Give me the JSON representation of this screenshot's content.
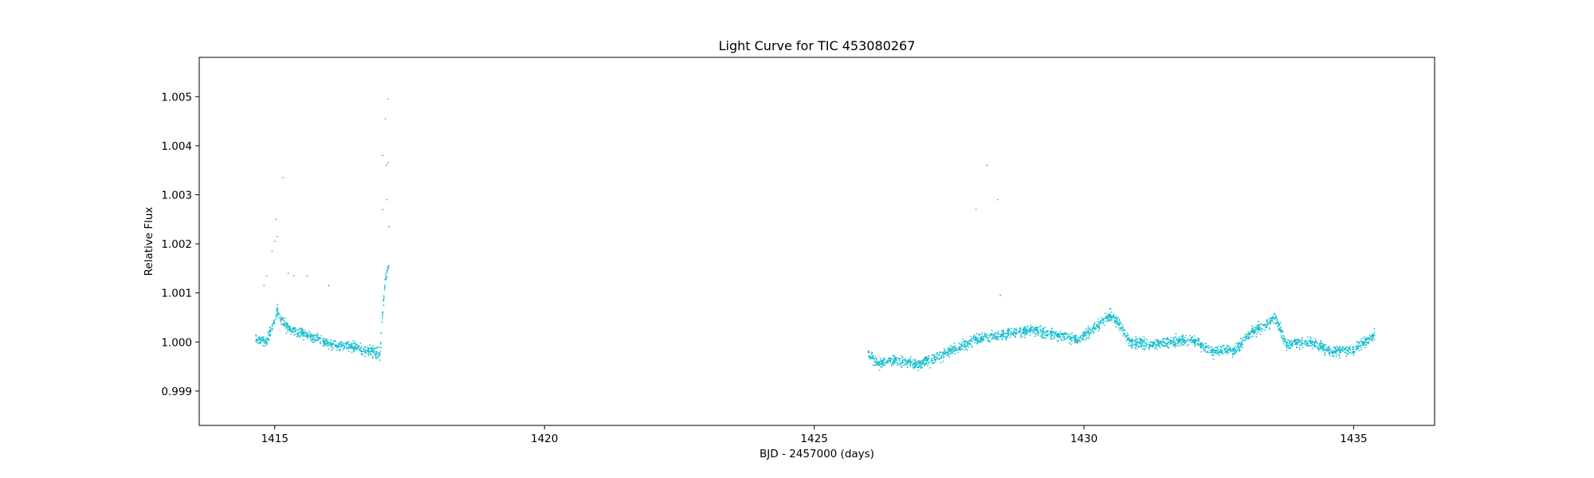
{
  "chart_data": {
    "type": "scatter",
    "title": "Light Curve for TIC 453080267",
    "xlabel": "BJD - 2457000 (days)",
    "ylabel": "Relative Flux",
    "xlim": [
      1413.6,
      1436.5
    ],
    "ylim": [
      0.9983,
      1.0058
    ],
    "x_ticks": [
      1415,
      1420,
      1425,
      1430,
      1435
    ],
    "x_tick_labels": [
      "1415",
      "1420",
      "1425",
      "1430",
      "1435"
    ],
    "y_ticks": [
      0.999,
      1.0,
      1.001,
      1.002,
      1.003,
      1.004,
      1.005
    ],
    "y_tick_labels": [
      "0.999",
      "1.000",
      "1.001",
      "1.002",
      "1.003",
      "1.004",
      "1.005"
    ],
    "grid": false,
    "marker_color": "#17becf",
    "series": [
      {
        "trend_points": [
          [
            1414.65,
            1.00005
          ],
          [
            1414.85,
            1.0
          ],
          [
            1415.0,
            1.00045
          ],
          [
            1415.05,
            1.00065
          ],
          [
            1415.12,
            1.00045
          ],
          [
            1415.3,
            1.00025
          ],
          [
            1415.6,
            1.00015
          ],
          [
            1416.0,
            0.99995
          ],
          [
            1416.5,
            0.9999
          ],
          [
            1416.95,
            0.99975
          ],
          [
            1417.0,
            1.0006
          ],
          [
            1417.05,
            1.0013
          ],
          [
            1417.12,
            1.0016
          ],
          [
            1426.0,
            0.99975
          ],
          [
            1426.2,
            0.99955
          ],
          [
            1426.5,
            0.99965
          ],
          [
            1426.9,
            0.99955
          ],
          [
            1427.3,
            0.9997
          ],
          [
            1427.7,
            0.9999
          ],
          [
            1428.0,
            1.00005
          ],
          [
            1428.5,
            1.00015
          ],
          [
            1429.0,
            1.00025
          ],
          [
            1429.5,
            1.00015
          ],
          [
            1429.9,
            1.00005
          ],
          [
            1430.2,
            1.0003
          ],
          [
            1430.5,
            1.00055
          ],
          [
            1430.7,
            1.0003
          ],
          [
            1430.85,
            1.0
          ],
          [
            1431.2,
            0.99995
          ],
          [
            1431.6,
            1.0
          ],
          [
            1432.0,
            1.00005
          ],
          [
            1432.4,
            0.9998
          ],
          [
            1432.8,
            0.99985
          ],
          [
            1433.1,
            1.0002
          ],
          [
            1433.4,
            1.00035
          ],
          [
            1433.55,
            1.0005
          ],
          [
            1433.75,
            0.99995
          ],
          [
            1434.2,
            1.0
          ],
          [
            1434.6,
            0.9998
          ],
          [
            1435.0,
            0.99985
          ],
          [
            1435.4,
            1.00015
          ]
        ],
        "outliers": [
          [
            1414.8,
            1.00115
          ],
          [
            1414.85,
            1.00135
          ],
          [
            1414.95,
            1.00185
          ],
          [
            1415.0,
            1.00205
          ],
          [
            1415.02,
            1.0025
          ],
          [
            1415.05,
            1.00215
          ],
          [
            1415.15,
            1.00335
          ],
          [
            1415.25,
            1.0014
          ],
          [
            1415.35,
            1.00135
          ],
          [
            1415.6,
            1.00135
          ],
          [
            1416.0,
            1.00115
          ],
          [
            1417.0,
            1.0038
          ],
          [
            1417.05,
            1.00455
          ],
          [
            1417.1,
            1.00495
          ],
          [
            1417.07,
            1.0036
          ],
          [
            1417.1,
            1.00365
          ],
          [
            1417.0,
            1.0027
          ],
          [
            1417.08,
            1.0029
          ],
          [
            1417.12,
            1.00235
          ],
          [
            1428.0,
            1.0027
          ],
          [
            1428.2,
            1.0036
          ],
          [
            1428.4,
            1.0029
          ],
          [
            1428.45,
            1.00095
          ]
        ]
      }
    ]
  }
}
